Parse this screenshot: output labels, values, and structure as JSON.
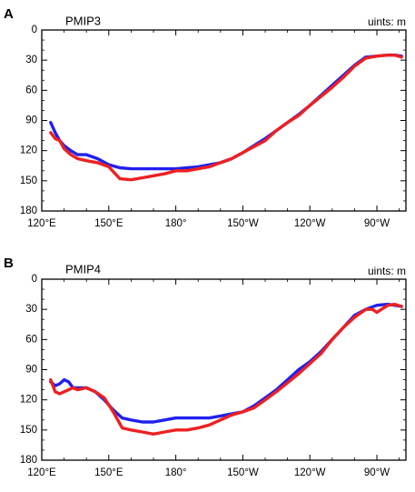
{
  "chart_data": [
    {
      "type": "line",
      "panel_label": "A",
      "title": "PMIP3",
      "units": "uints: m",
      "x_ticks": [
        "120°E",
        "150°E",
        "180°",
        "150°W",
        "120°W",
        "90°W"
      ],
      "x_tick_values": [
        120,
        150,
        180,
        210,
        240,
        270
      ],
      "xlim": [
        120,
        283
      ],
      "y_ticks": [
        "0",
        "30",
        "60",
        "90",
        "120",
        "150",
        "180"
      ],
      "y_tick_values": [
        0,
        30,
        60,
        90,
        120,
        150,
        180
      ],
      "ylim": [
        0,
        180
      ],
      "y_inverted": true,
      "grid": false,
      "series": [
        {
          "color": "#2020ee",
          "x": [
            124,
            126,
            128,
            130,
            133,
            136,
            140,
            145,
            150,
            155,
            160,
            170,
            180,
            190,
            200,
            205,
            210,
            215,
            220,
            225,
            230,
            235,
            240,
            245,
            250,
            255,
            260,
            265,
            270,
            275,
            278,
            281
          ],
          "y": [
            92,
            102,
            110,
            115,
            120,
            124,
            124,
            128,
            134,
            137,
            138,
            138,
            138,
            136,
            132,
            128,
            122,
            115,
            108,
            100,
            92,
            84,
            75,
            65,
            55,
            45,
            35,
            27,
            26,
            25,
            25,
            26
          ]
        },
        {
          "color": "#ee2020",
          "x": [
            124,
            126,
            128,
            130,
            133,
            136,
            140,
            145,
            150,
            155,
            160,
            165,
            170,
            175,
            180,
            185,
            190,
            195,
            200,
            205,
            210,
            215,
            220,
            225,
            230,
            235,
            240,
            245,
            250,
            255,
            260,
            265,
            270,
            275,
            278,
            281
          ],
          "y": [
            102,
            108,
            110,
            118,
            124,
            128,
            130,
            132,
            136,
            148,
            149,
            147,
            145,
            143,
            140,
            140,
            138,
            136,
            132,
            128,
            122,
            116,
            110,
            100,
            92,
            85,
            75,
            66,
            57,
            47,
            36,
            28,
            26,
            25,
            25,
            27
          ]
        }
      ]
    },
    {
      "type": "line",
      "panel_label": "B",
      "title": "PMIP4",
      "units": "uints: m",
      "x_ticks": [
        "120°E",
        "150°E",
        "180°",
        "150°W",
        "120°W",
        "90°W"
      ],
      "x_tick_values": [
        120,
        150,
        180,
        210,
        240,
        270
      ],
      "xlim": [
        120,
        283
      ],
      "y_ticks": [
        "0",
        "30",
        "60",
        "90",
        "120",
        "150",
        "180"
      ],
      "y_tick_values": [
        0,
        30,
        60,
        90,
        120,
        150,
        180
      ],
      "ylim": [
        0,
        180
      ],
      "y_inverted": true,
      "grid": false,
      "series": [
        {
          "color": "#2020ee",
          "x": [
            124,
            126,
            128,
            130,
            132,
            134,
            136,
            140,
            144,
            148,
            152,
            156,
            160,
            165,
            170,
            175,
            180,
            185,
            190,
            195,
            200,
            205,
            210,
            215,
            220,
            225,
            230,
            235,
            240,
            245,
            250,
            255,
            260,
            265,
            270,
            275,
            278,
            281
          ],
          "y": [
            102,
            106,
            104,
            100,
            102,
            108,
            108,
            108,
            112,
            120,
            130,
            138,
            140,
            142,
            142,
            140,
            138,
            138,
            138,
            138,
            136,
            134,
            132,
            126,
            118,
            110,
            100,
            90,
            82,
            72,
            60,
            48,
            36,
            30,
            26,
            25,
            26,
            27
          ]
        },
        {
          "color": "#ee2020",
          "x": [
            124,
            126,
            128,
            130,
            132,
            134,
            136,
            140,
            144,
            148,
            152,
            156,
            160,
            165,
            170,
            175,
            180,
            185,
            190,
            195,
            200,
            205,
            210,
            215,
            220,
            225,
            230,
            235,
            240,
            245,
            250,
            255,
            260,
            265,
            268,
            270,
            272,
            275,
            278,
            281
          ],
          "y": [
            100,
            112,
            114,
            112,
            110,
            108,
            110,
            108,
            112,
            118,
            132,
            148,
            150,
            152,
            154,
            152,
            150,
            150,
            148,
            145,
            140,
            135,
            132,
            128,
            120,
            112,
            103,
            94,
            84,
            74,
            60,
            48,
            38,
            30,
            30,
            33,
            30,
            26,
            25,
            27
          ]
        }
      ]
    }
  ]
}
